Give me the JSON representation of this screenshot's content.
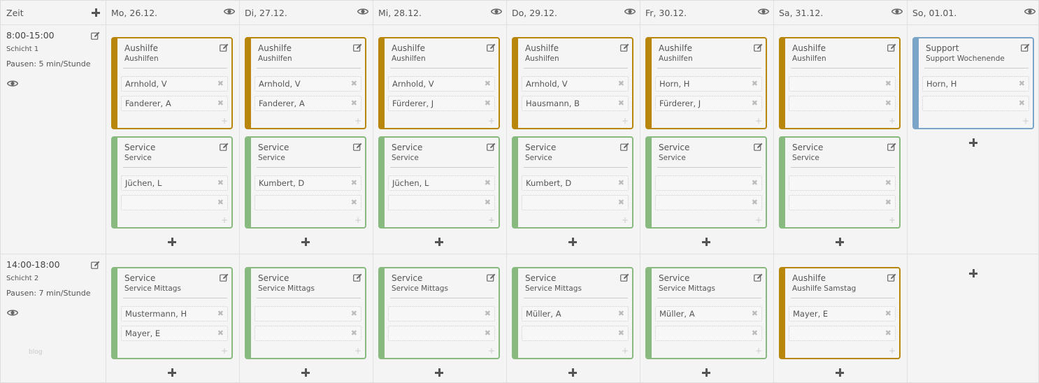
{
  "header": {
    "time_col": "Zeit",
    "days": [
      "Mo, 26.12.",
      "Di, 27.12.",
      "Mi, 28.12.",
      "Do, 29.12.",
      "Fr, 30.12.",
      "Sa, 31.12.",
      "So, 01.01."
    ]
  },
  "shifts": [
    {
      "time": "8:00-15:00",
      "name": "Schicht 1",
      "breaks": "Pausen: 5 min/Stunde"
    },
    {
      "time": "14:00-18:00",
      "name": "Schicht 2",
      "breaks": "Pausen: 7 min/Stunde"
    }
  ],
  "watermark": "blog",
  "cards": {
    "r1a": [
      {
        "title": "Aushilfe",
        "sub": "Aushilfen",
        "color": "#b8860b",
        "slots": [
          "Arnhold, V",
          "Fanderer, A"
        ]
      },
      {
        "title": "Aushilfe",
        "sub": "Aushilfen",
        "color": "#b8860b",
        "slots": [
          "Arnhold, V",
          "Fanderer, A"
        ]
      },
      {
        "title": "Aushilfe",
        "sub": "Aushilfen",
        "color": "#b8860b",
        "slots": [
          "Arnhold, V",
          "Fürderer, J"
        ]
      },
      {
        "title": "Aushilfe",
        "sub": "Aushilfen",
        "color": "#b8860b",
        "slots": [
          "Arnhold, V",
          "Hausmann, B"
        ]
      },
      {
        "title": "Aushilfe",
        "sub": "Aushilfen",
        "color": "#b8860b",
        "slots": [
          "Horn, H",
          "Fürderer, J"
        ]
      },
      {
        "title": "Aushilfe",
        "sub": "Aushilfen",
        "color": "#b8860b",
        "slots": [
          "",
          ""
        ]
      },
      {
        "title": "Support",
        "sub": "Support Wochenende",
        "color": "#7aa4c8",
        "slots": [
          "Horn, H",
          ""
        ]
      }
    ],
    "r1b": [
      {
        "title": "Service",
        "sub": "Service",
        "color": "#88b97f",
        "slots": [
          "Jüchen, L",
          ""
        ]
      },
      {
        "title": "Service",
        "sub": "Service",
        "color": "#88b97f",
        "slots": [
          "Kumbert, D",
          ""
        ]
      },
      {
        "title": "Service",
        "sub": "Service",
        "color": "#88b97f",
        "slots": [
          "Jüchen, L",
          ""
        ]
      },
      {
        "title": "Service",
        "sub": "Service",
        "color": "#88b97f",
        "slots": [
          "Kumbert, D",
          ""
        ]
      },
      {
        "title": "Service",
        "sub": "Service",
        "color": "#88b97f",
        "slots": [
          "",
          ""
        ]
      },
      {
        "title": "Service",
        "sub": "Service",
        "color": "#88b97f",
        "slots": [
          "",
          ""
        ]
      }
    ],
    "r2": [
      {
        "title": "Service",
        "sub": "Service Mittags",
        "color": "#88b97f",
        "slots": [
          "Mustermann, H",
          "Mayer, E"
        ]
      },
      {
        "title": "Service",
        "sub": "Service Mittags",
        "color": "#88b97f",
        "slots": [
          "",
          ""
        ]
      },
      {
        "title": "Service",
        "sub": "Service Mittags",
        "color": "#88b97f",
        "slots": [
          "",
          ""
        ]
      },
      {
        "title": "Service",
        "sub": "Service Mittags",
        "color": "#88b97f",
        "slots": [
          "Müller, A",
          ""
        ]
      },
      {
        "title": "Service",
        "sub": "Service Mittags",
        "color": "#88b97f",
        "slots": [
          "Müller, A",
          ""
        ]
      },
      {
        "title": "Aushilfe",
        "sub": "Aushilfe Samstag",
        "color": "#b8860b",
        "slots": [
          "Mayer, E",
          ""
        ]
      }
    ]
  }
}
